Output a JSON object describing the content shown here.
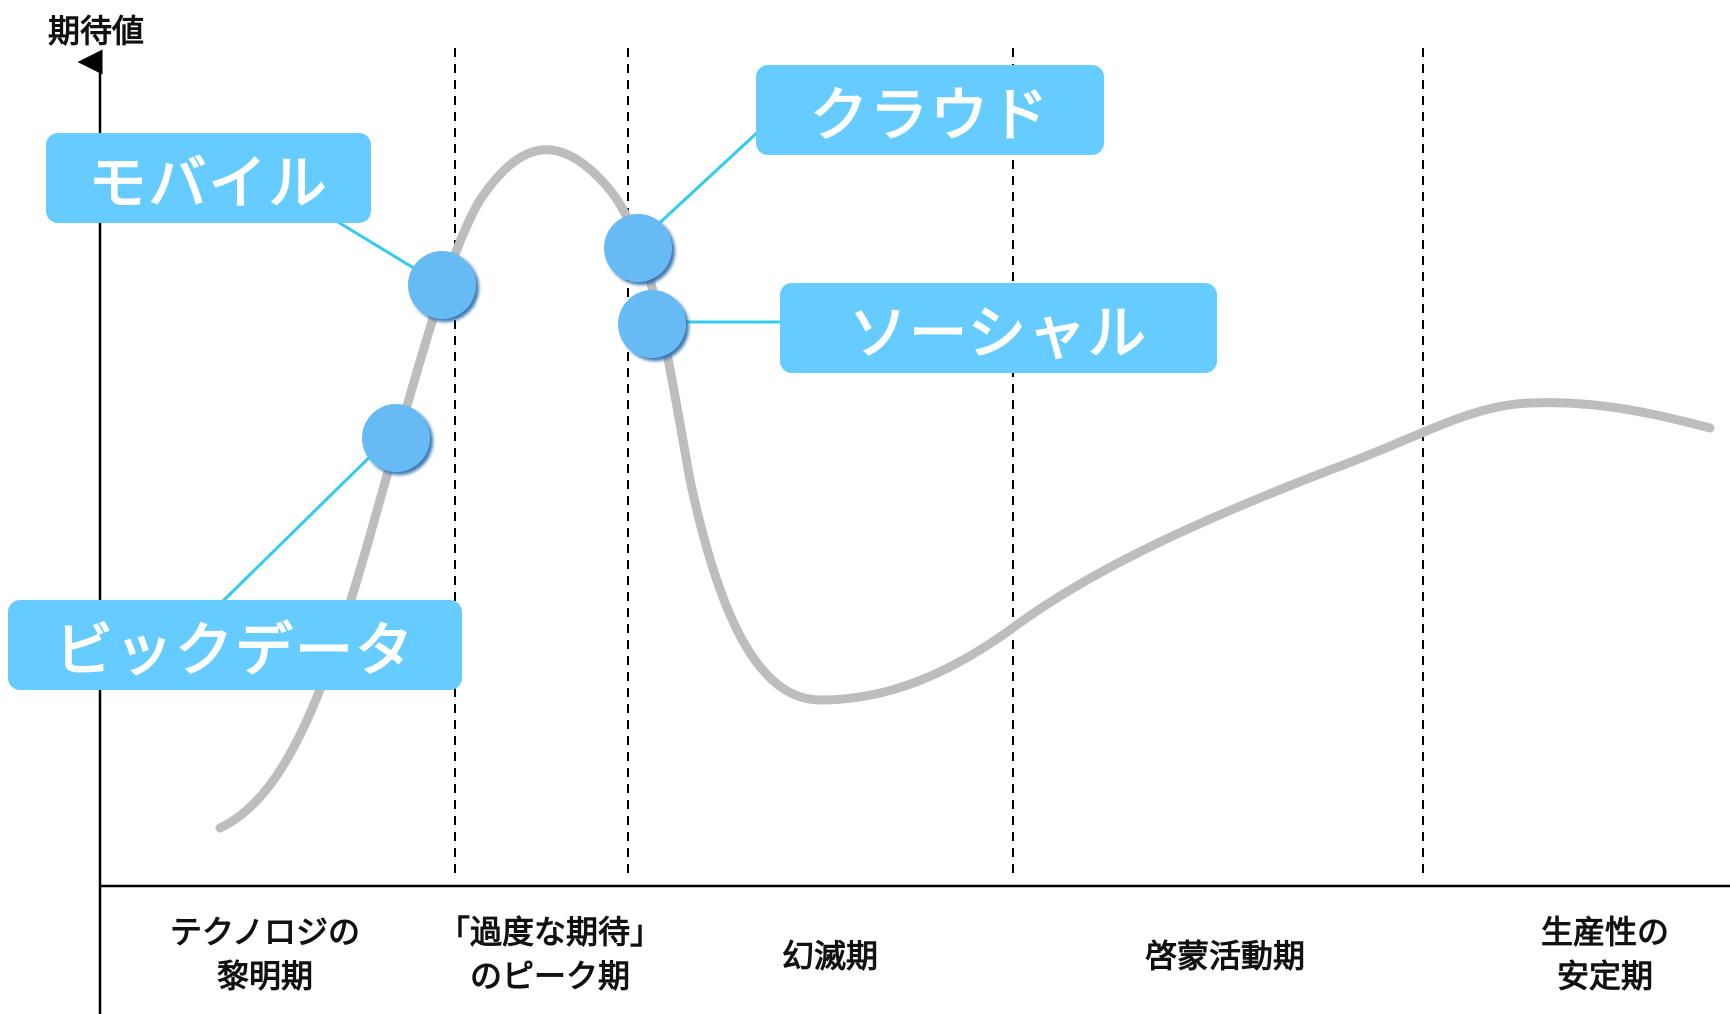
{
  "axis": {
    "y_label": "期待値"
  },
  "phases": [
    {
      "line1": "テクノロジの",
      "line2": "黎明期"
    },
    {
      "line1": "「過度な期待」",
      "line2": "のピーク期"
    },
    {
      "line1": "幻滅期",
      "line2": ""
    },
    {
      "line1": "啓蒙活動期",
      "line2": ""
    },
    {
      "line1": "生産性の",
      "line2": "安定期"
    }
  ],
  "technologies": [
    {
      "name": "モバイル"
    },
    {
      "name": "クラウド"
    },
    {
      "name": "ソーシャル"
    },
    {
      "name": "ビックデータ"
    }
  ],
  "colors": {
    "accent": "#66ccff",
    "connector": "#33ccee",
    "dot": "#66bbf5",
    "dot_border": "#3a7db5",
    "curve": "#bdbdbd",
    "axis": "#000000"
  }
}
